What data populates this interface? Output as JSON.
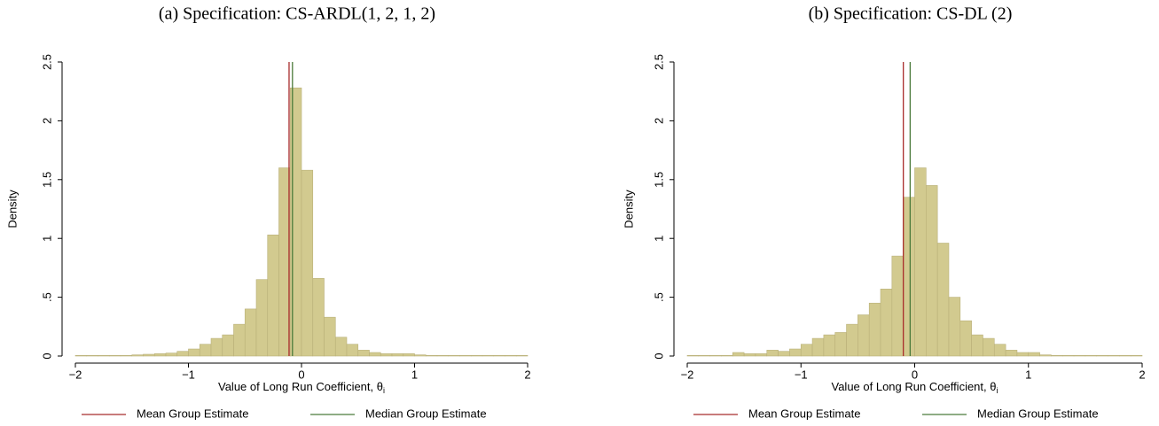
{
  "chart_data": [
    {
      "type": "histogram",
      "title": "(a) Specification: CS-ARDL(1, 2, 1, 2)",
      "x_label": "Value of Long Run Coefficient, θ",
      "x_label_subscript": "i",
      "y_label": "Density",
      "bins": [
        -2.0,
        -1.9,
        -1.8,
        -1.7,
        -1.6,
        -1.5,
        -1.4,
        -1.3,
        -1.2,
        -1.1,
        -1.0,
        -0.9,
        -0.8,
        -0.7,
        -0.6,
        -0.5,
        -0.4,
        -0.3,
        -0.2,
        -0.1,
        0.0,
        0.1,
        0.2,
        0.3,
        0.4,
        0.5,
        0.6,
        0.7,
        0.8,
        0.9,
        1.0,
        1.1,
        1.2,
        1.3,
        1.4,
        1.5,
        1.6,
        1.7,
        1.8,
        1.9,
        2.0
      ],
      "values": [
        0.005,
        0.005,
        0.005,
        0.005,
        0.005,
        0.01,
        0.015,
        0.02,
        0.025,
        0.04,
        0.06,
        0.1,
        0.15,
        0.18,
        0.27,
        0.4,
        0.65,
        1.03,
        1.6,
        2.28,
        1.58,
        0.66,
        0.33,
        0.16,
        0.1,
        0.05,
        0.03,
        0.02,
        0.02,
        0.02,
        0.01,
        0.005,
        0.005,
        0.005,
        0.005,
        0.005,
        0.005,
        0.005,
        0.005,
        0.005
      ],
      "color": "#d2ca8f",
      "lines": [
        {
          "name": "Mean Group Estimate",
          "color": "#a82c2c",
          "value": -0.11
        },
        {
          "name": "Median Group Estimate",
          "color": "#4a7a3a",
          "value": -0.08
        }
      ],
      "xlim": [
        -2,
        2
      ],
      "xticks": [
        {
          "value": -2,
          "label": "−2"
        },
        {
          "value": -1,
          "label": "−1"
        },
        0,
        1,
        2
      ],
      "ylim": [
        0,
        2.5
      ],
      "yticks": [
        0,
        {
          "value": 0.5,
          "label": ".5"
        },
        1,
        1.5,
        2,
        2.5
      ]
    },
    {
      "type": "histogram",
      "title": "(b) Specification: CS-DL (2)",
      "x_label": "Value of Long Run Coefficient, θ",
      "x_label_subscript": "i",
      "y_label": "Density",
      "bins": [
        -2.0,
        -1.9,
        -1.8,
        -1.7,
        -1.6,
        -1.5,
        -1.4,
        -1.3,
        -1.2,
        -1.1,
        -1.0,
        -0.9,
        -0.8,
        -0.7,
        -0.6,
        -0.5,
        -0.4,
        -0.3,
        -0.2,
        -0.1,
        0.0,
        0.1,
        0.2,
        0.3,
        0.4,
        0.5,
        0.6,
        0.7,
        0.8,
        0.9,
        1.0,
        1.1,
        1.2,
        1.3,
        1.4,
        1.5,
        1.6,
        1.7,
        1.8,
        1.9,
        2.0
      ],
      "values": [
        0.005,
        0.005,
        0.005,
        0.005,
        0.03,
        0.02,
        0.02,
        0.05,
        0.04,
        0.06,
        0.1,
        0.15,
        0.18,
        0.2,
        0.27,
        0.35,
        0.45,
        0.57,
        0.85,
        1.35,
        1.6,
        1.45,
        0.96,
        0.5,
        0.3,
        0.18,
        0.15,
        0.1,
        0.05,
        0.03,
        0.03,
        0.01,
        0.005,
        0.005,
        0.005,
        0.005,
        0.005,
        0.005,
        0.005,
        0.005
      ],
      "color": "#d2ca8f",
      "lines": [
        {
          "name": "Mean Group Estimate",
          "color": "#a82c2c",
          "value": -0.1
        },
        {
          "name": "Median Group Estimate",
          "color": "#4a7a3a",
          "value": -0.04
        }
      ],
      "xlim": [
        -2,
        2
      ],
      "xticks": [
        {
          "value": -2,
          "label": "−2"
        },
        {
          "value": -1,
          "label": "−1"
        },
        0,
        1,
        2
      ],
      "ylim": [
        0,
        2.5
      ],
      "yticks": [
        0,
        {
          "value": 0.5,
          "label": ".5"
        },
        1,
        1.5,
        2,
        2.5
      ]
    }
  ]
}
